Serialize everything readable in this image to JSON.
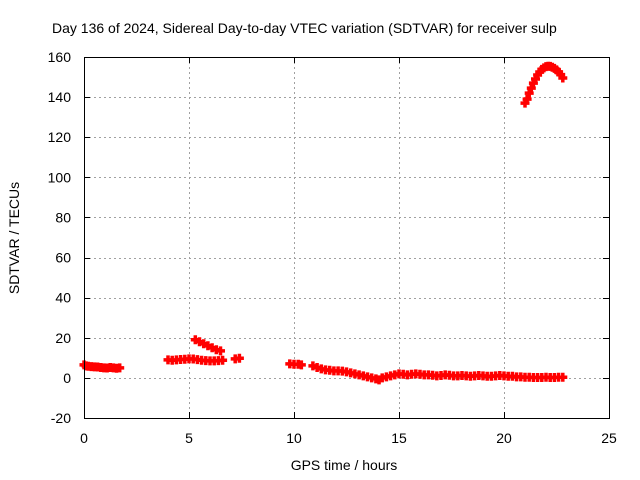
{
  "chart_data": {
    "type": "scatter",
    "title": "Day 136 of 2024, Sidereal Day-to-day VTEC variation (SDTVAR) for receiver sulp",
    "xlabel": "GPS time / hours",
    "ylabel": "SDTVAR / TECUs",
    "xlim": [
      0,
      25
    ],
    "ylim": [
      -20,
      160
    ],
    "xticks": [
      0,
      5,
      10,
      15,
      20,
      25
    ],
    "yticks": [
      -20,
      0,
      20,
      40,
      60,
      80,
      100,
      120,
      140,
      160
    ],
    "grid": true,
    "marker": "plus",
    "marker_color": "#ff0000",
    "series": [
      {
        "name": "SDTVAR",
        "points": [
          [
            0.0,
            6.5
          ],
          [
            0.1,
            6.0
          ],
          [
            0.2,
            5.8
          ],
          [
            0.35,
            5.6
          ],
          [
            0.5,
            5.5
          ],
          [
            0.65,
            5.4
          ],
          [
            0.8,
            5.2
          ],
          [
            0.95,
            5.0
          ],
          [
            1.1,
            4.9
          ],
          [
            1.25,
            5.2
          ],
          [
            1.4,
            5.0
          ],
          [
            1.55,
            4.8
          ],
          [
            1.7,
            5.0
          ],
          [
            4.0,
            9.0
          ],
          [
            4.2,
            8.8
          ],
          [
            4.4,
            9.0
          ],
          [
            4.6,
            9.2
          ],
          [
            4.8,
            9.3
          ],
          [
            5.0,
            9.5
          ],
          [
            5.2,
            9.4
          ],
          [
            5.4,
            9.1
          ],
          [
            5.6,
            8.8
          ],
          [
            5.8,
            8.6
          ],
          [
            6.0,
            8.5
          ],
          [
            6.2,
            8.5
          ],
          [
            6.4,
            8.6
          ],
          [
            6.6,
            8.8
          ],
          [
            5.3,
            19.0
          ],
          [
            5.5,
            18.0
          ],
          [
            5.7,
            17.0
          ],
          [
            5.9,
            16.0
          ],
          [
            6.1,
            15.0
          ],
          [
            6.3,
            14.0
          ],
          [
            6.5,
            13.5
          ],
          [
            7.2,
            9.5
          ],
          [
            7.4,
            9.8
          ],
          [
            9.8,
            7.0
          ],
          [
            10.0,
            6.8
          ],
          [
            10.2,
            6.8
          ],
          [
            10.35,
            6.5
          ],
          [
            10.9,
            6.0
          ],
          [
            11.1,
            5.2
          ],
          [
            11.3,
            4.5
          ],
          [
            11.5,
            4.0
          ],
          [
            11.7,
            3.8
          ],
          [
            11.9,
            3.5
          ],
          [
            12.1,
            3.5
          ],
          [
            12.3,
            3.4
          ],
          [
            12.5,
            3.0
          ],
          [
            12.7,
            2.5
          ],
          [
            12.9,
            2.0
          ],
          [
            13.1,
            1.5
          ],
          [
            13.3,
            1.0
          ],
          [
            13.5,
            0.5
          ],
          [
            13.7,
            0.0
          ],
          [
            13.9,
            -0.5
          ],
          [
            14.05,
            -1.0
          ],
          [
            14.2,
            0.0
          ],
          [
            14.4,
            0.5
          ],
          [
            14.6,
            1.0
          ],
          [
            14.8,
            1.5
          ],
          [
            15.0,
            2.0
          ],
          [
            15.2,
            1.8
          ],
          [
            15.4,
            1.5
          ],
          [
            15.6,
            1.8
          ],
          [
            15.8,
            2.0
          ],
          [
            16.0,
            1.8
          ],
          [
            16.2,
            1.5
          ],
          [
            16.4,
            1.5
          ],
          [
            16.6,
            1.3
          ],
          [
            16.8,
            1.0
          ],
          [
            17.0,
            1.2
          ],
          [
            17.2,
            1.5
          ],
          [
            17.4,
            1.3
          ],
          [
            17.6,
            1.0
          ],
          [
            17.8,
            1.0
          ],
          [
            18.0,
            1.2
          ],
          [
            18.2,
            1.0
          ],
          [
            18.4,
            0.8
          ],
          [
            18.6,
            1.0
          ],
          [
            18.8,
            1.2
          ],
          [
            19.0,
            1.0
          ],
          [
            19.2,
            0.8
          ],
          [
            19.4,
            0.8
          ],
          [
            19.6,
            1.0
          ],
          [
            19.8,
            1.2
          ],
          [
            20.0,
            1.0
          ],
          [
            20.2,
            0.8
          ],
          [
            20.4,
            0.8
          ],
          [
            20.6,
            0.5
          ],
          [
            20.8,
            0.5
          ],
          [
            21.0,
            0.3
          ],
          [
            21.2,
            0.3
          ],
          [
            21.4,
            0.2
          ],
          [
            21.6,
            0.2
          ],
          [
            21.8,
            0.2
          ],
          [
            22.0,
            0.3
          ],
          [
            22.2,
            0.2
          ],
          [
            22.4,
            0.2
          ],
          [
            22.6,
            0.3
          ],
          [
            22.8,
            0.3
          ],
          [
            21.0,
            137.0
          ],
          [
            21.1,
            139.0
          ],
          [
            21.2,
            142.0
          ],
          [
            21.3,
            144.5
          ],
          [
            21.4,
            147.0
          ],
          [
            21.5,
            149.0
          ],
          [
            21.6,
            151.0
          ],
          [
            21.7,
            152.5
          ],
          [
            21.8,
            153.8
          ],
          [
            21.9,
            154.6
          ],
          [
            22.0,
            155.2
          ],
          [
            22.1,
            155.4
          ],
          [
            22.2,
            155.3
          ],
          [
            22.3,
            154.9
          ],
          [
            22.4,
            154.3
          ],
          [
            22.5,
            153.6
          ],
          [
            22.6,
            152.5
          ],
          [
            22.7,
            151.2
          ],
          [
            22.8,
            149.5
          ]
        ]
      }
    ]
  }
}
